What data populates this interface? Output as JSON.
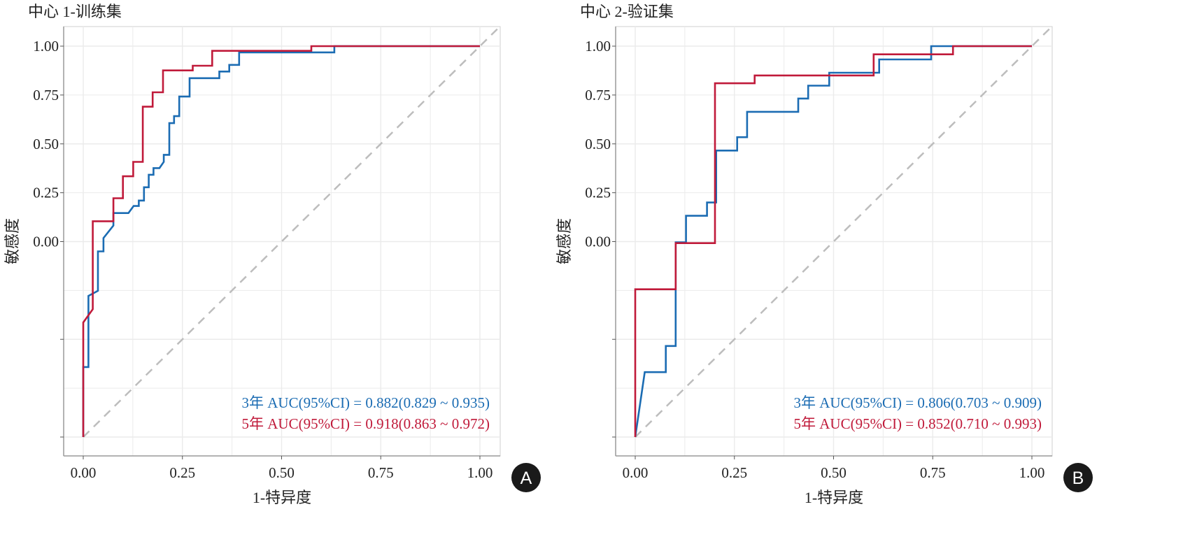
{
  "colors": {
    "series_3yr": "#1b6cb3",
    "series_5yr": "#c01a3a",
    "diagonal": "#bdbdbd",
    "grid": "#ebebeb",
    "axis": "#9a9a9a"
  },
  "chart_data": [
    {
      "type": "line",
      "panel_badge": "A",
      "title": "中心 1-训练集",
      "xlabel": "1-特异度",
      "ylabel": "敏感度",
      "xlim": [
        0,
        1
      ],
      "ylim": [
        0,
        1
      ],
      "grid": true,
      "xticks": [
        {
          "value": 0,
          "label": "0.00"
        },
        {
          "value": 0.25,
          "label": "0.25"
        },
        {
          "value": 0.5,
          "label": "0.50"
        },
        {
          "value": 0.75,
          "label": "0.75"
        },
        {
          "value": 1,
          "label": "1.00"
        }
      ],
      "yticks": [
        {
          "value": 0,
          "label": ""
        },
        {
          "value": 0.25,
          "label": ""
        },
        {
          "value": 0.5,
          "label": "0.00"
        },
        {
          "value": 0.625,
          "label": "0.25"
        },
        {
          "value": 0.75,
          "label": "0.50"
        },
        {
          "value": 0.875,
          "label": "0.75"
        },
        {
          "value": 1,
          "label": "1.00"
        }
      ],
      "reference_line": "diagonal",
      "series": [
        {
          "name": "3年 AUC(95%CI) = 0.882(0.829 ~ 0.935)",
          "color_key": "series_3yr",
          "points": [
            [
              0,
              0
            ],
            [
              0,
              0.179
            ],
            [
              0.013,
              0.179
            ],
            [
              0.013,
              0.361
            ],
            [
              0.037,
              0.374
            ],
            [
              0.037,
              0.475
            ],
            [
              0.051,
              0.475
            ],
            [
              0.051,
              0.509
            ],
            [
              0.076,
              0.541
            ],
            [
              0.076,
              0.573
            ],
            [
              0.114,
              0.573
            ],
            [
              0.127,
              0.591
            ],
            [
              0.14,
              0.591
            ],
            [
              0.14,
              0.605
            ],
            [
              0.153,
              0.605
            ],
            [
              0.153,
              0.639
            ],
            [
              0.165,
              0.639
            ],
            [
              0.165,
              0.671
            ],
            [
              0.177,
              0.671
            ],
            [
              0.177,
              0.688
            ],
            [
              0.192,
              0.688
            ],
            [
              0.203,
              0.704
            ],
            [
              0.203,
              0.722
            ],
            [
              0.217,
              0.722
            ],
            [
              0.217,
              0.803
            ],
            [
              0.229,
              0.803
            ],
            [
              0.229,
              0.821
            ],
            [
              0.242,
              0.821
            ],
            [
              0.242,
              0.871
            ],
            [
              0.268,
              0.871
            ],
            [
              0.268,
              0.918
            ],
            [
              0.343,
              0.918
            ],
            [
              0.343,
              0.935
            ],
            [
              0.368,
              0.935
            ],
            [
              0.368,
              0.952
            ],
            [
              0.393,
              0.952
            ],
            [
              0.393,
              0.984
            ],
            [
              0.633,
              0.984
            ],
            [
              0.633,
              1
            ],
            [
              1,
              1
            ]
          ]
        },
        {
          "name": "5年 AUC(95%CI) = 0.918(0.863 ~ 0.972)",
          "color_key": "series_5yr",
          "points": [
            [
              0,
              0
            ],
            [
              0,
              0.293
            ],
            [
              0.024,
              0.327
            ],
            [
              0.024,
              0.552
            ],
            [
              0.076,
              0.552
            ],
            [
              0.076,
              0.611
            ],
            [
              0.1,
              0.611
            ],
            [
              0.1,
              0.667
            ],
            [
              0.126,
              0.667
            ],
            [
              0.126,
              0.704
            ],
            [
              0.15,
              0.704
            ],
            [
              0.15,
              0.845
            ],
            [
              0.175,
              0.845
            ],
            [
              0.175,
              0.882
            ],
            [
              0.201,
              0.882
            ],
            [
              0.201,
              0.938
            ],
            [
              0.276,
              0.938
            ],
            [
              0.276,
              0.95
            ],
            [
              0.325,
              0.95
            ],
            [
              0.325,
              0.988
            ],
            [
              0.575,
              0.988
            ],
            [
              0.575,
              1
            ],
            [
              1,
              1
            ]
          ]
        }
      ]
    },
    {
      "type": "line",
      "panel_badge": "B",
      "title": "中心 2-验证集",
      "xlabel": "1-特异度",
      "ylabel": "敏感度",
      "xlim": [
        0,
        1
      ],
      "ylim": [
        0,
        1
      ],
      "grid": true,
      "xticks": [
        {
          "value": 0,
          "label": "0.00"
        },
        {
          "value": 0.25,
          "label": "0.25"
        },
        {
          "value": 0.5,
          "label": "0.50"
        },
        {
          "value": 0.75,
          "label": "0.75"
        },
        {
          "value": 1,
          "label": "1.00"
        }
      ],
      "yticks": [
        {
          "value": 0,
          "label": ""
        },
        {
          "value": 0.25,
          "label": ""
        },
        {
          "value": 0.5,
          "label": "0.00"
        },
        {
          "value": 0.625,
          "label": "0.25"
        },
        {
          "value": 0.75,
          "label": "0.50"
        },
        {
          "value": 0.875,
          "label": "0.75"
        },
        {
          "value": 1,
          "label": "1.00"
        }
      ],
      "reference_line": "diagonal",
      "series": [
        {
          "name": "3年 AUC(95%CI) = 0.806(0.703 ~ 0.909)",
          "color_key": "series_3yr",
          "points": [
            [
              0,
              0
            ],
            [
              0.024,
              0.166
            ],
            [
              0.077,
              0.166
            ],
            [
              0.077,
              0.233
            ],
            [
              0.102,
              0.233
            ],
            [
              0.102,
              0.498
            ],
            [
              0.128,
              0.498
            ],
            [
              0.128,
              0.566
            ],
            [
              0.181,
              0.566
            ],
            [
              0.181,
              0.6
            ],
            [
              0.204,
              0.6
            ],
            [
              0.204,
              0.733
            ],
            [
              0.257,
              0.733
            ],
            [
              0.257,
              0.767
            ],
            [
              0.282,
              0.767
            ],
            [
              0.282,
              0.832
            ],
            [
              0.411,
              0.832
            ],
            [
              0.411,
              0.866
            ],
            [
              0.436,
              0.866
            ],
            [
              0.436,
              0.899
            ],
            [
              0.489,
              0.899
            ],
            [
              0.489,
              0.932
            ],
            [
              0.615,
              0.932
            ],
            [
              0.615,
              0.966
            ],
            [
              0.746,
              0.966
            ],
            [
              0.746,
              1
            ],
            [
              1,
              1
            ]
          ]
        },
        {
          "name": "5年 AUC(95%CI) = 0.852(0.710 ~ 0.993)",
          "color_key": "series_5yr",
          "points": [
            [
              0,
              0
            ],
            [
              0,
              0.378
            ],
            [
              0.102,
              0.378
            ],
            [
              0.102,
              0.496
            ],
            [
              0.201,
              0.496
            ],
            [
              0.201,
              0.905
            ],
            [
              0.301,
              0.905
            ],
            [
              0.301,
              0.925
            ],
            [
              0.601,
              0.925
            ],
            [
              0.601,
              0.979
            ],
            [
              0.801,
              0.979
            ],
            [
              0.801,
              1
            ],
            [
              1,
              1
            ]
          ]
        }
      ]
    }
  ]
}
